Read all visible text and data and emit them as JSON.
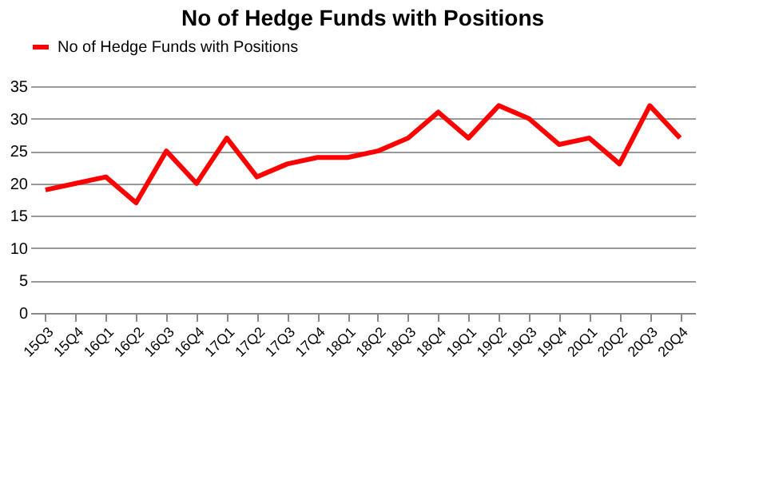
{
  "chart_data": {
    "type": "line",
    "title": "No of Hedge Funds with Positions",
    "categories": [
      "15Q3",
      "15Q4",
      "16Q1",
      "16Q2",
      "16Q3",
      "16Q4",
      "17Q1",
      "17Q2",
      "17Q3",
      "17Q4",
      "18Q1",
      "18Q2",
      "18Q3",
      "18Q4",
      "19Q1",
      "19Q2",
      "19Q3",
      "19Q4",
      "20Q1",
      "20Q2",
      "20Q3",
      "20Q4"
    ],
    "series": [
      {
        "name": "No of Hedge Funds with Positions",
        "color": "#ff0000",
        "values": [
          19,
          20,
          21,
          17,
          25,
          20,
          27,
          21,
          23,
          24,
          24,
          25,
          27,
          31,
          27,
          32,
          30,
          26,
          27,
          23,
          32,
          27
        ]
      }
    ],
    "ylim": [
      0,
      35
    ],
    "yticks": [
      0,
      5,
      10,
      15,
      20,
      25,
      30,
      35
    ],
    "grid": "y",
    "legend": "top",
    "marker": "none",
    "line_style": "solid"
  }
}
